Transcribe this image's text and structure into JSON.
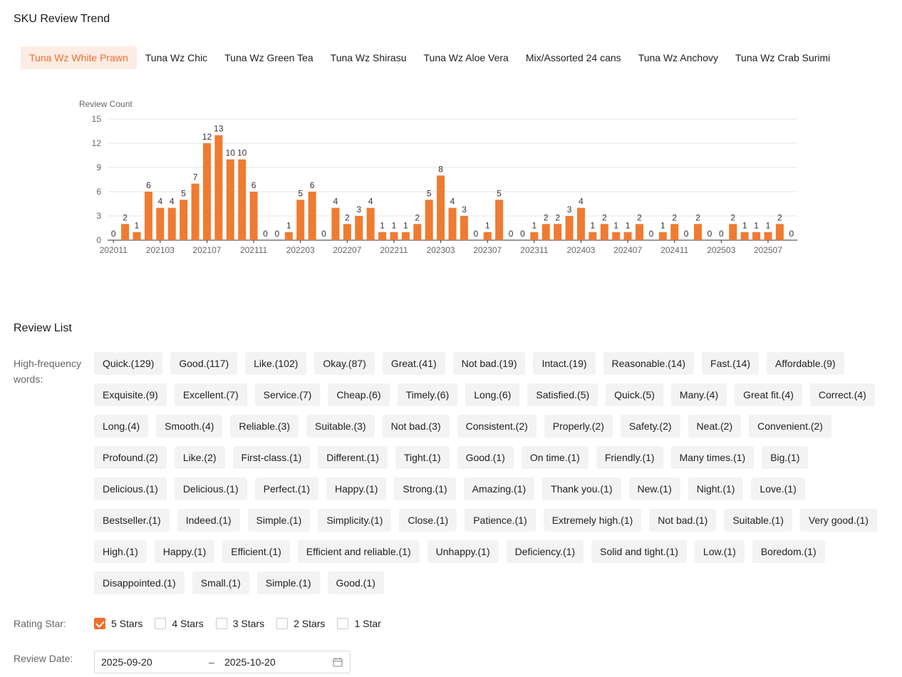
{
  "trend": {
    "title": "SKU Review Trend"
  },
  "tabs": [
    {
      "label": "Tuna Wz White Prawn",
      "active": true
    },
    {
      "label": "Tuna Wz Chic"
    },
    {
      "label": "Tuna Wz Green Tea"
    },
    {
      "label": "Tuna Wz Shirasu"
    },
    {
      "label": "Tuna Wz Aloe Vera"
    },
    {
      "label": "Mix/Assorted 24 cans"
    },
    {
      "label": "Tuna Wz Anchovy"
    },
    {
      "label": "Tuna Wz Crab Surimi"
    }
  ],
  "chart_data": {
    "type": "bar",
    "ylabel": "Review Count",
    "ylim": [
      0,
      15
    ],
    "yticks": [
      0,
      3,
      6,
      9,
      12,
      15
    ],
    "color": "#ef7b32",
    "categories": [
      "202011",
      "202012",
      "202101",
      "202102",
      "202103",
      "202104",
      "202105",
      "202106",
      "202107",
      "202108",
      "202109",
      "202110",
      "202111",
      "202112",
      "202201",
      "202202",
      "202203",
      "202204",
      "202205",
      "202206",
      "202207",
      "202208",
      "202209",
      "202210",
      "202211",
      "202212",
      "202301",
      "202302",
      "202303",
      "202304",
      "202305",
      "202306",
      "202307",
      "202308",
      "202309",
      "202310",
      "202311",
      "202312",
      "202401",
      "202402",
      "202403",
      "202404",
      "202405",
      "202406",
      "202407",
      "202408",
      "202409",
      "202410",
      "202411",
      "202412",
      "202501",
      "202502",
      "202503",
      "202504",
      "202505",
      "202506",
      "202507",
      "202508",
      "202509"
    ],
    "values": [
      0,
      2,
      1,
      6,
      4,
      4,
      5,
      7,
      12,
      13,
      10,
      10,
      6,
      0,
      0,
      1,
      5,
      6,
      0,
      4,
      2,
      3,
      4,
      1,
      1,
      1,
      2,
      5,
      8,
      4,
      3,
      0,
      1,
      5,
      0,
      0,
      1,
      2,
      2,
      3,
      4,
      1,
      2,
      1,
      1,
      2,
      0,
      1,
      2,
      0,
      2,
      0,
      0,
      2,
      1,
      1,
      1,
      2,
      0
    ],
    "xtick_labels": [
      "202011",
      "202103",
      "202107",
      "202111",
      "202203",
      "202207",
      "202211",
      "202303",
      "202307",
      "202311",
      "202403",
      "202407",
      "202411",
      "202503",
      "202507"
    ]
  },
  "review_list": {
    "title": "Review List",
    "hf_label": "High-frequency words:",
    "tags": [
      "Quick.(129)",
      "Good.(117)",
      "Like.(102)",
      "Okay.(87)",
      "Great.(41)",
      "Not bad.(19)",
      "Intact.(19)",
      "Reasonable.(14)",
      "Fast.(14)",
      "Affordable.(9)",
      "Exquisite.(9)",
      "Excellent.(7)",
      "Service.(7)",
      "Cheap.(6)",
      "Timely.(6)",
      "Long.(6)",
      "Satisfied.(5)",
      "Quick.(5)",
      "Many.(4)",
      "Great fit.(4)",
      "Correct.(4)",
      "Long.(4)",
      "Smooth.(4)",
      "Reliable.(3)",
      "Suitable.(3)",
      "Not bad.(3)",
      "Consistent.(2)",
      "Properly.(2)",
      "Safety.(2)",
      "Neat.(2)",
      "Convenient.(2)",
      "Profound.(2)",
      "Like.(2)",
      "First-class.(1)",
      "Different.(1)",
      "Tight.(1)",
      "Good.(1)",
      "On time.(1)",
      "Friendly.(1)",
      "Many times.(1)",
      "Big.(1)",
      "Delicious.(1)",
      "Delicious.(1)",
      "Perfect.(1)",
      "Happy.(1)",
      "Strong.(1)",
      "Amazing.(1)",
      "Thank you.(1)",
      "New.(1)",
      "Night.(1)",
      "Love.(1)",
      "Bestseller.(1)",
      "Indeed.(1)",
      "Simple.(1)",
      "Simplicity.(1)",
      "Close.(1)",
      "Patience.(1)",
      "Extremely high.(1)",
      "Not bad.(1)",
      "Suitable.(1)",
      "Very good.(1)",
      "High.(1)",
      "Happy.(1)",
      "Efficient.(1)",
      "Efficient and reliable.(1)",
      "Unhappy.(1)",
      "Deficiency.(1)",
      "Solid and tight.(1)",
      "Low.(1)",
      "Boredom.(1)",
      "Disappointed.(1)",
      "Small.(1)",
      "Simple.(1)",
      "Good.(1)"
    ],
    "rating_label": "Rating Star:",
    "stars": [
      {
        "label": "5 Stars",
        "checked": true
      },
      {
        "label": "4 Stars",
        "checked": false
      },
      {
        "label": "3 Stars",
        "checked": false
      },
      {
        "label": "2 Stars",
        "checked": false
      },
      {
        "label": "1 Star",
        "checked": false
      }
    ],
    "date_label": "Review Date:",
    "date_start": "2025-09-20",
    "date_sep": "–",
    "date_end": "2025-10-20",
    "calendar_icon": "calendar-icon"
  }
}
